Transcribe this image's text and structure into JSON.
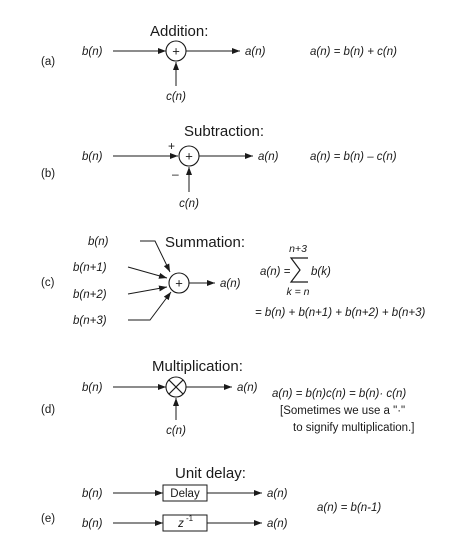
{
  "sections": {
    "a": {
      "tag": "(a)",
      "title": "Addition:",
      "in1": "b(n)",
      "in2": "c(n)",
      "out": "a(n)",
      "node": "+",
      "equation": "a(n) = b(n) + c(n)"
    },
    "b": {
      "tag": "(b)",
      "title": "Subtraction:",
      "in1": "b(n)",
      "in2": "c(n)",
      "out": "a(n)",
      "node": "+",
      "plus_sign": "+",
      "minus_sign": "–",
      "equation": "a(n) = b(n) – c(n)"
    },
    "c": {
      "tag": "(c)",
      "title": "Summation:",
      "inputs": [
        "b(n)",
        "b(n+1)",
        "b(n+2)",
        "b(n+3)"
      ],
      "out": "a(n)",
      "node": "+",
      "eq_lhs": "a(n) =",
      "sum_upper": "n+3",
      "sum_lower": "k = n",
      "sum_term": "b(k)",
      "eq_expanded": "= b(n) + b(n+1) + b(n+2) + b(n+3)"
    },
    "d": {
      "tag": "(d)",
      "title": "Multiplication:",
      "in1": "b(n)",
      "in2": "c(n)",
      "out": "a(n)",
      "equation": "a(n) = b(n)c(n) = b(n)· c(n)",
      "note1": "[Sometimes we use a \"·\"",
      "note2": "to signify multiplication.]"
    },
    "e": {
      "tag": "(e)",
      "title": "Unit delay:",
      "in1": "b(n)",
      "in2": "b(n)",
      "out1": "a(n)",
      "out2": "a(n)",
      "box1": "Delay",
      "box2": "z",
      "box2_sup": "-1",
      "equation": "a(n) = b(n-1)"
    }
  }
}
